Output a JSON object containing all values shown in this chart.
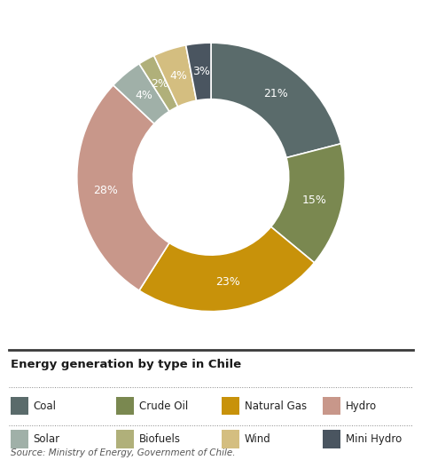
{
  "title": "Energy generation by type in Chile",
  "source": "Source: Ministry of Energy, Government of Chile.",
  "labels": [
    "Coal",
    "Crude Oil",
    "Natural Gas",
    "Hydro",
    "Solar",
    "Biofuels",
    "Wind",
    "Mini Hydro"
  ],
  "values": [
    21,
    15,
    23,
    28,
    4,
    2,
    4,
    3
  ],
  "colors": [
    "#5a6b6b",
    "#7a8850",
    "#c8920a",
    "#c8978a",
    "#a0b0a8",
    "#b0b07a",
    "#d4be80",
    "#4a5560"
  ],
  "pct_labels": [
    "21%",
    "15%",
    "23%",
    "28%",
    "4%",
    "2%",
    "4%",
    "3%"
  ],
  "background_color": "#ffffff",
  "text_color": "#ffffff",
  "donut_width": 0.42,
  "startangle": 90
}
